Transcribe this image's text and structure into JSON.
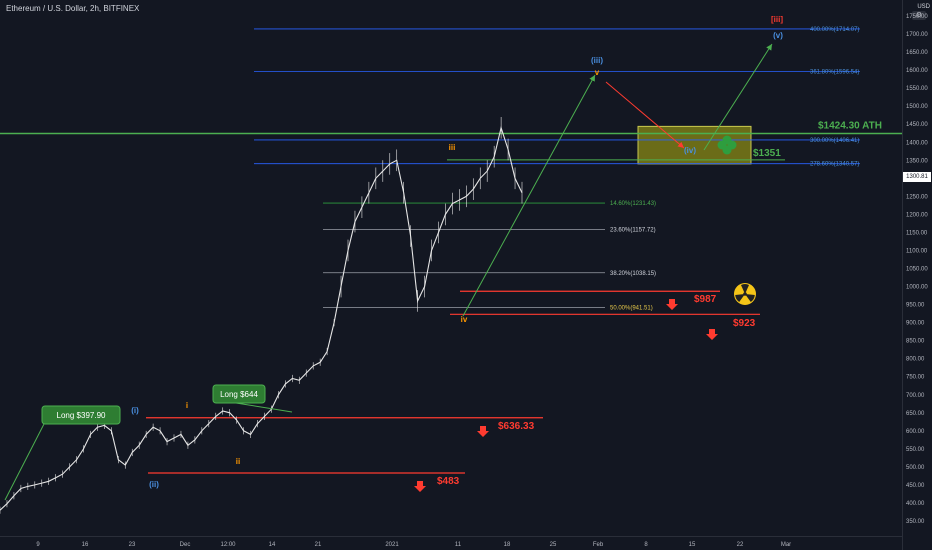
{
  "header": {
    "title": "Ethereum / U.S. Dollar, 2h, BITFINEX",
    "currency": "USD",
    "settings_icon": "gear-icon"
  },
  "last_price": "1300.81",
  "colors": {
    "background": "#131722",
    "candle": "#e6e6e6",
    "green_line": "#4caf50",
    "blue_fib": "#2962ff",
    "red_level": "#ff3b30",
    "wave_blue": "#4a90e2",
    "wave_orange": "#ff9800"
  },
  "chart_data": {
    "type": "line",
    "y_axis": {
      "ticks": [
        350,
        400,
        450,
        500,
        550,
        600,
        650,
        700,
        750,
        800,
        850,
        900,
        950,
        1000,
        1050,
        1100,
        1150,
        1200,
        1250,
        1300,
        1350,
        1400,
        1450,
        1500,
        1550,
        1600,
        1650,
        1700,
        1750
      ],
      "tick_labels": [
        "350.00",
        "400.00",
        "450.00",
        "500.00",
        "550.00",
        "600.00",
        "650.00",
        "700.00",
        "750.00",
        "800.00",
        "850.00",
        "900.00",
        "950.00",
        "1000.00",
        "1050.00",
        "1100.00",
        "1150.00",
        "1200.00",
        "1250.00",
        "1300.00",
        "1350.00",
        "1400.00",
        "1450.00",
        "1500.00",
        "1550.00",
        "1600.00",
        "1650.00",
        "1700.00",
        "1750.00"
      ]
    },
    "x_axis": {
      "tick_labels": [
        "9",
        "16",
        "23",
        "Dec",
        "12:00",
        "14",
        "21",
        "2021",
        "11",
        "18",
        "25",
        "Feb",
        "8",
        "15",
        "22",
        "Mar"
      ]
    },
    "price_series": {
      "name": "",
      "values": [
        380,
        398,
        420,
        440,
        446,
        450,
        455,
        460,
        470,
        480,
        500,
        520,
        550,
        590,
        610,
        615,
        600,
        520,
        505,
        540,
        560,
        590,
        610,
        600,
        570,
        580,
        590,
        560,
        575,
        600,
        620,
        640,
        655,
        650,
        630,
        600,
        590,
        620,
        640,
        660,
        700,
        730,
        745,
        740,
        760,
        780,
        790,
        820,
        900,
        1000,
        1100,
        1180,
        1220,
        1260,
        1300,
        1320,
        1340,
        1350,
        1260,
        1140,
        960,
        1000,
        1100,
        1150,
        1200,
        1230,
        1240,
        1250,
        1270,
        1300,
        1320,
        1360,
        1440,
        1380,
        1300,
        1260
      ]
    },
    "horizontal_levels": [
      {
        "label": "$1424.30 ATH",
        "value": 1424.3,
        "role": "ath"
      },
      {
        "label": "400.00%(1714.07)",
        "value": 1714.07,
        "role": "fib_blue"
      },
      {
        "label": "361.80%(1596.54)",
        "value": 1596.54,
        "role": "fib_blue"
      },
      {
        "label": "300.00%(1406.41)",
        "value": 1406.41,
        "role": "fib_blue"
      },
      {
        "label": "278.60%(1340.57)",
        "value": 1340.57,
        "role": "fib_blue"
      },
      {
        "label": "14.60%(1231.43)",
        "value": 1231.43,
        "role": "fib_green"
      },
      {
        "label": "23.60%(1157.72)",
        "value": 1157.72,
        "role": "fib_white"
      },
      {
        "label": "38.20%(1038.15)",
        "value": 1038.15,
        "role": "fib_white"
      },
      {
        "label": "50.00%(941.51)",
        "value": 941.51,
        "role": "fib_yellow"
      },
      {
        "label": "$987",
        "value": 987,
        "role": "support"
      },
      {
        "label": "$923",
        "value": 923,
        "role": "support"
      },
      {
        "label": "$636.33",
        "value": 636.33,
        "role": "support"
      },
      {
        "label": "$483",
        "value": 483,
        "role": "support"
      },
      {
        "label": "",
        "value": 1351,
        "role": "green_short"
      }
    ],
    "target_box": {
      "label": "$1351",
      "low": 1340,
      "high": 1444
    },
    "wave_labels": [
      {
        "text": "[iii]",
        "color": "red"
      },
      {
        "text": "(v)",
        "color": "blue"
      },
      {
        "text": "(iii)",
        "color": "blue"
      },
      {
        "text": "v",
        "color": "orange"
      },
      {
        "text": "(iv)",
        "color": "blue"
      },
      {
        "text": "iii",
        "color": "orange"
      },
      {
        "text": "iv",
        "color": "orange"
      },
      {
        "text": "(i)",
        "color": "blue"
      },
      {
        "text": "(ii)",
        "color": "blue"
      },
      {
        "text": "i",
        "color": "orange"
      },
      {
        "text": "ii",
        "color": "orange"
      }
    ],
    "callouts": [
      {
        "text": "Long $397.90"
      },
      {
        "text": "Long $644"
      }
    ],
    "icons": [
      "clover-icon",
      "radiation-icon"
    ]
  }
}
